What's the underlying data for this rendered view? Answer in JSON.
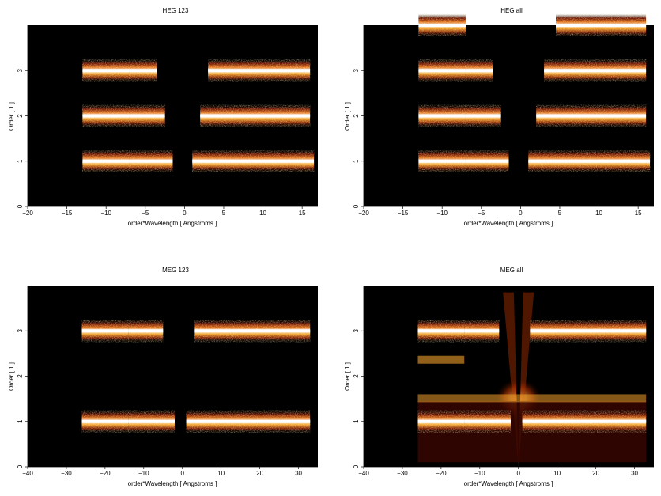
{
  "chart_data": [
    {
      "type": "heatmap",
      "title": "HEG 123",
      "xlabel": "order*Wavelength [ Angstroms ]",
      "ylabel": "Order [ 1 ]",
      "xlim": [
        -20,
        17
      ],
      "ylim": [
        0,
        4
      ],
      "xticks": [
        -20,
        -15,
        -10,
        -5,
        0,
        5,
        10,
        15
      ],
      "yticks": [
        0,
        1,
        2,
        3
      ],
      "colormap": [
        "#000000",
        "#5a0a00",
        "#b03000",
        "#e87a10",
        "#ffd36b",
        "#ffffff"
      ],
      "bands": [
        {
          "order": 1,
          "x_ranges": [
            [
              -13,
              -7
            ],
            [
              -7,
              -1.5
            ],
            [
              1,
              16.5
            ]
          ]
        },
        {
          "order": 2,
          "x_ranges": [
            [
              -13,
              -7
            ],
            [
              -7,
              -2.5
            ],
            [
              2,
              16
            ]
          ]
        },
        {
          "order": 3,
          "x_ranges": [
            [
              -13,
              -7
            ],
            [
              -7,
              -3.5
            ],
            [
              3,
              16
            ]
          ]
        }
      ]
    },
    {
      "type": "heatmap",
      "title": "HEG all",
      "xlabel": "order*Wavelength [ Angstroms ]",
      "ylabel": "Order [ 1 ]",
      "xlim": [
        -20,
        17
      ],
      "ylim": [
        0,
        4
      ],
      "xticks": [
        -20,
        -15,
        -10,
        -5,
        0,
        5,
        10,
        15
      ],
      "yticks": [
        0,
        1,
        2,
        3
      ],
      "colormap": [
        "#000000",
        "#5a0a00",
        "#b03000",
        "#e87a10",
        "#ffd36b",
        "#ffffff"
      ],
      "bands": [
        {
          "order": 1,
          "x_ranges": [
            [
              -13,
              -7
            ],
            [
              -7,
              -1.5
            ],
            [
              1,
              16.5
            ]
          ]
        },
        {
          "order": 2,
          "x_ranges": [
            [
              -13,
              -7
            ],
            [
              -7,
              -2.5
            ],
            [
              2,
              16
            ]
          ]
        },
        {
          "order": 3,
          "x_ranges": [
            [
              -13,
              -7
            ],
            [
              -7,
              -3.5
            ],
            [
              3,
              16
            ]
          ]
        },
        {
          "order": 4,
          "x_ranges": [
            [
              -13,
              -7
            ],
            [
              4.5,
              16
            ]
          ]
        }
      ]
    },
    {
      "type": "heatmap",
      "title": "MEG 123",
      "xlabel": "order*Wavelength [ Angstroms ]",
      "ylabel": "Order [ 1 ]",
      "xlim": [
        -40,
        35
      ],
      "ylim": [
        0,
        4
      ],
      "xticks": [
        -40,
        -30,
        -20,
        -10,
        0,
        10,
        20,
        30
      ],
      "yticks": [
        0,
        1,
        2,
        3
      ],
      "colormap": [
        "#000000",
        "#5a0a00",
        "#b03000",
        "#e87a10",
        "#ffd36b",
        "#ffffff"
      ],
      "bands": [
        {
          "order": 1,
          "x_ranges": [
            [
              -26,
              -14
            ],
            [
              -14,
              -2
            ],
            [
              1,
              33
            ]
          ]
        },
        {
          "order": 3,
          "x_ranges": [
            [
              -26,
              -14
            ],
            [
              -14,
              -5
            ],
            [
              3,
              33
            ]
          ]
        }
      ]
    },
    {
      "type": "heatmap",
      "title": "MEG all",
      "xlabel": "order*Wavelength [ Angstroms ]",
      "ylabel": "Order [ 1 ]",
      "xlim": [
        -40,
        35
      ],
      "ylim": [
        0,
        4
      ],
      "xticks": [
        -40,
        -30,
        -20,
        -10,
        0,
        10,
        20,
        30
      ],
      "yticks": [
        0,
        1,
        2,
        3
      ],
      "colormap": [
        "#000000",
        "#5a0a00",
        "#b03000",
        "#e87a10",
        "#ffd36b",
        "#ffffff"
      ],
      "bands": [
        {
          "order": 1,
          "x_ranges": [
            [
              -26,
              -14
            ],
            [
              -14,
              -2
            ],
            [
              1,
              33
            ]
          ]
        },
        {
          "order": 3,
          "x_ranges": [
            [
              -26,
              -14
            ],
            [
              -14,
              -5
            ],
            [
              3,
              33
            ]
          ]
        }
      ]
    }
  ]
}
